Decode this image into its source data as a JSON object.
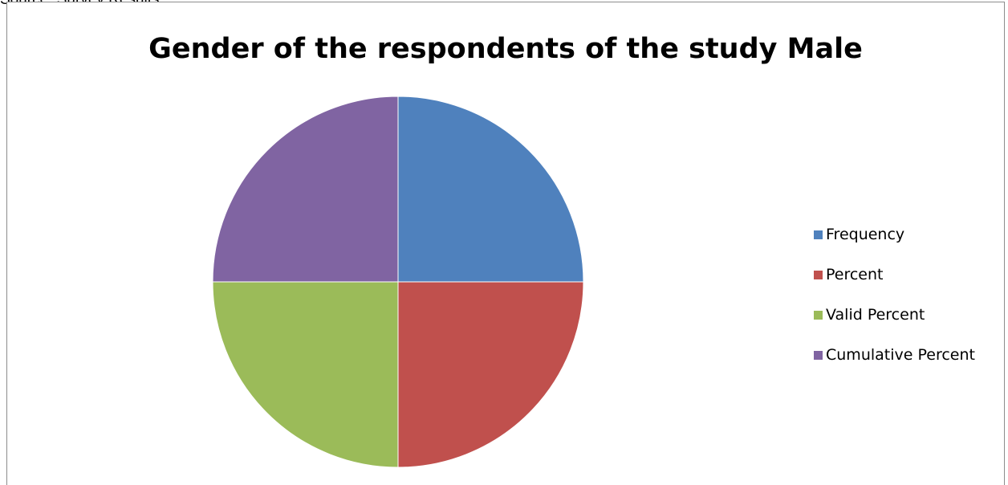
{
  "source_text": "Source: Survey Results",
  "chart_data": {
    "type": "pie",
    "title": "Gender of the respondents of the study Male",
    "categories": [
      "Frequency",
      "Percent",
      "Valid Percent",
      "Cumulative Percent"
    ],
    "values": [
      25,
      25,
      25,
      25
    ],
    "colors": [
      "#4F81BD",
      "#C0504D",
      "#9BBB59",
      "#8064A2"
    ],
    "legend_position": "right"
  }
}
